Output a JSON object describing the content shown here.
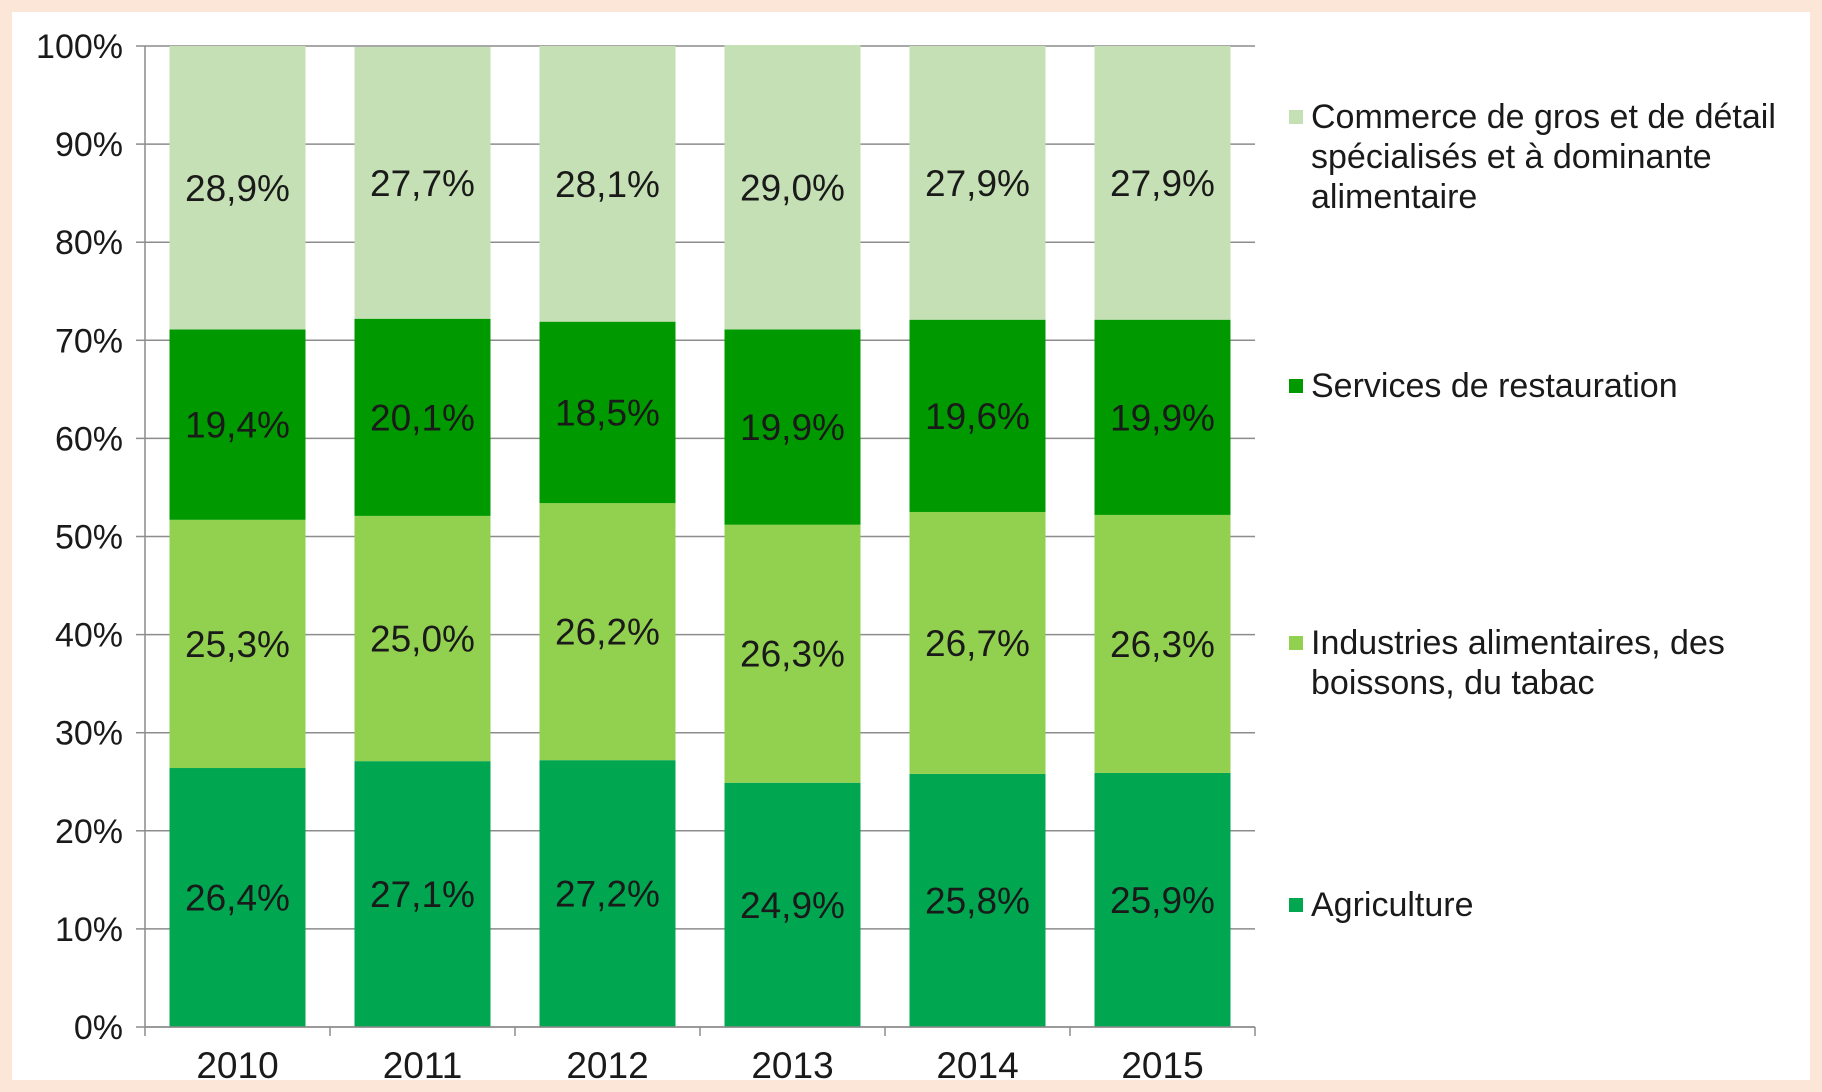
{
  "chart_data": {
    "type": "bar",
    "stacked": true,
    "categories": [
      "2010",
      "2011",
      "2012",
      "2013",
      "2014",
      "2015"
    ],
    "ylim": [
      0,
      100
    ],
    "yticks": [
      "0%",
      "10%",
      "20%",
      "30%",
      "40%",
      "50%",
      "60%",
      "70%",
      "80%",
      "90%",
      "100%"
    ],
    "grid": true,
    "legend_position": "right",
    "series": [
      {
        "name": "Agriculture",
        "color": "#00a650",
        "values": [
          26.4,
          27.1,
          27.2,
          24.9,
          25.8,
          25.9
        ],
        "labels": [
          "26,4%",
          "27,1%",
          "27,2%",
          "24,9%",
          "25,8%",
          "25,9%"
        ]
      },
      {
        "name": "Industries alimentaires, des boissons, du tabac",
        "legend_lines": [
          "Industries alimentaires, des",
          "boissons, du tabac"
        ],
        "color": "#92d050",
        "values": [
          25.3,
          25.0,
          26.2,
          26.3,
          26.7,
          26.3
        ],
        "labels": [
          "25,3%",
          "25,0%",
          "26,2%",
          "26,3%",
          "26,7%",
          "26,3%"
        ]
      },
      {
        "name": "Services de restauration",
        "legend_lines": [
          "Services de restauration"
        ],
        "color": "#009a00",
        "values": [
          19.4,
          20.1,
          18.5,
          19.9,
          19.6,
          19.9
        ],
        "labels": [
          "19,4%",
          "20,1%",
          "18,5%",
          "19,9%",
          "19,6%",
          "19,9%"
        ]
      },
      {
        "name": "Commerce de gros et de détail spécialisés et à dominante alimentaire",
        "legend_lines": [
          "Commerce de gros et de détail",
          "spécialisés et à dominante",
          "alimentaire"
        ],
        "color": "#c5e0b4",
        "values": [
          28.9,
          27.7,
          28.1,
          29.0,
          27.9,
          27.9
        ],
        "labels": [
          "28,9%",
          "27,7%",
          "28,1%",
          "29,0%",
          "27,9%",
          "27,9%"
        ]
      }
    ]
  }
}
